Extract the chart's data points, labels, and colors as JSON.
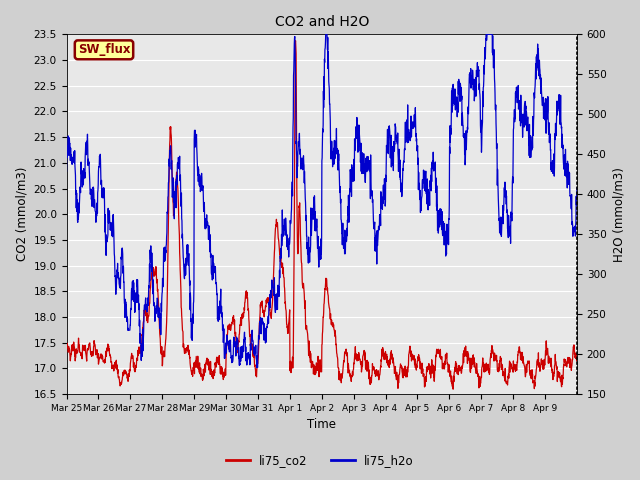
{
  "title": "CO2 and H2O",
  "xlabel": "Time",
  "ylabel_left": "CO2 (mmol/m3)",
  "ylabel_right": "H2O (mmol/m3)",
  "ylim_left": [
    16.5,
    23.5
  ],
  "ylim_right": [
    150,
    600
  ],
  "yticks_left": [
    16.5,
    17.0,
    17.5,
    18.0,
    18.5,
    19.0,
    19.5,
    20.0,
    20.5,
    21.0,
    21.5,
    22.0,
    22.5,
    23.0,
    23.5
  ],
  "yticks_right": [
    150,
    200,
    250,
    300,
    350,
    400,
    450,
    500,
    550,
    600
  ],
  "xtick_labels": [
    "Mar 25",
    "Mar 26",
    "Mar 27",
    "Mar 28",
    "Mar 29",
    "Mar 30",
    "Mar 31",
    "Apr 1",
    "Apr 2",
    "Apr 3",
    "Apr 4",
    "Apr 5",
    "Apr 6",
    "Apr 7",
    "Apr 8",
    "Apr 9"
  ],
  "legend_co2": "li75_co2",
  "legend_h2o": "li75_h2o",
  "color_co2": "#cc0000",
  "color_h2o": "#0000cc",
  "sw_flux_label": "SW_flux",
  "sw_flux_bg": "#ffff99",
  "sw_flux_border": "#880000",
  "sw_flux_text": "#880000",
  "plot_bg": "#e8e8e8",
  "fig_bg": "#d0d0d0",
  "grid_color": "#ffffff",
  "linewidth": 0.9
}
